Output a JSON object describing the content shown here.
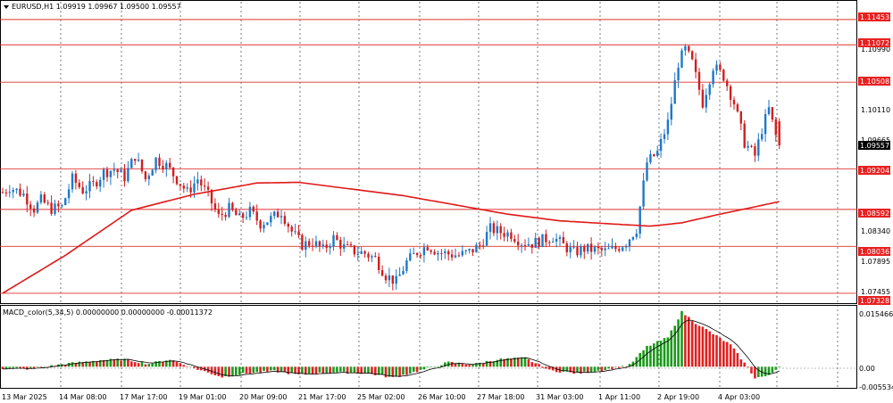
{
  "header": {
    "symbol_line": "EURUSD,H1  1.09919 1.09967 1.09500 1.09557"
  },
  "indicator": {
    "label": "MACD_color(5,34,5) 0.00000000 0.00000000 -0.00011372",
    "scale_labels": [
      "0.0154669",
      "0.00",
      "-0.0055345"
    ]
  },
  "price_axis": {
    "ticks": [
      "1.10990",
      "1.10110",
      "1.09665",
      "1.08340",
      "1.07895",
      "1.07455"
    ],
    "current_price": "1.09557",
    "levels": [
      "1.11453",
      "1.11072",
      "1.10508",
      "1.09204",
      "1.08592",
      "1.08036",
      "1.07328"
    ]
  },
  "time_axis": {
    "labels": [
      "13 Mar 2025",
      "14 Mar 08:00",
      "17 Mar 17:00",
      "19 Mar 01:00",
      "20 Mar 09:00",
      "21 Mar 17:00",
      "25 Mar 02:00",
      "26 Mar 10:00",
      "27 Mar 18:00",
      "31 Mar 03:00",
      "1 Apr 11:00",
      "2 Apr 19:00",
      "4 Apr 03:00"
    ]
  },
  "colors": {
    "bull": "#1f77c8",
    "bear": "#d01f1f",
    "level_line": "#e03030",
    "ma_line": "#e01818",
    "level_tag": "#e82020",
    "current_tag": "#000000",
    "macd_up": "#1a9a1a",
    "macd_down": "#e02020",
    "signal": "#000000",
    "grid": "#404040"
  },
  "chart_data": {
    "type": "candlestick",
    "symbol": "EURUSD",
    "timeframe": "H1",
    "last_ohlc": {
      "open": 1.09919,
      "high": 1.09967,
      "low": 1.095,
      "close": 1.09557
    },
    "ylim": [
      1.0718,
      1.1172
    ],
    "horizontal_levels": [
      1.11453,
      1.11072,
      1.10508,
      1.09204,
      1.08592,
      1.08036,
      1.07328
    ],
    "close_path": [
      [
        0,
        1.0885
      ],
      [
        2,
        1.0893
      ],
      [
        6,
        1.0882
      ],
      [
        9,
        1.086
      ],
      [
        11,
        1.0873
      ],
      [
        14,
        1.086
      ],
      [
        17,
        1.0863
      ],
      [
        20,
        1.0905
      ],
      [
        23,
        1.0888
      ],
      [
        26,
        1.0896
      ],
      [
        29,
        1.0915
      ],
      [
        32,
        1.092
      ],
      [
        35,
        1.0908
      ],
      [
        38,
        1.094
      ],
      [
        41,
        1.0905
      ],
      [
        44,
        1.0935
      ],
      [
        47,
        1.0925
      ],
      [
        50,
        1.0905
      ],
      [
        53,
        1.0885
      ],
      [
        56,
        1.0905
      ],
      [
        59,
        1.088
      ],
      [
        62,
        1.0848
      ],
      [
        65,
        1.086
      ],
      [
        68,
        1.0845
      ],
      [
        71,
        1.0856
      ],
      [
        74,
        1.0838
      ],
      [
        77,
        1.0845
      ],
      [
        80,
        1.0856
      ],
      [
        83,
        1.0826
      ],
      [
        86,
        1.0806
      ],
      [
        89,
        1.081
      ],
      [
        92,
        1.0798
      ],
      [
        95,
        1.0816
      ],
      [
        98,
        1.0802
      ],
      [
        101,
        1.0796
      ],
      [
        104,
        1.0793
      ],
      [
        107,
        1.0785
      ],
      [
        110,
        1.076
      ],
      [
        113,
        1.075
      ],
      [
        116,
        1.078
      ],
      [
        119,
        1.0795
      ],
      [
        122,
        1.0805
      ],
      [
        125,
        1.0795
      ],
      [
        128,
        1.0792
      ],
      [
        131,
        1.079
      ],
      [
        134,
        1.0795
      ],
      [
        137,
        1.0805
      ],
      [
        140,
        1.083
      ],
      [
        143,
        1.0825
      ],
      [
        146,
        1.0822
      ],
      [
        149,
        1.081
      ],
      [
        152,
        1.0808
      ],
      [
        155,
        1.0813
      ],
      [
        158,
        1.0818
      ],
      [
        161,
        1.0805
      ],
      [
        164,
        1.0794
      ],
      [
        167,
        1.08
      ],
      [
        170,
        1.0798
      ],
      [
        173,
        1.0796
      ],
      [
        176,
        1.08
      ],
      [
        179,
        1.081
      ],
      [
        182,
        1.083
      ],
      [
        185,
        1.093
      ],
      [
        188,
        1.0945
      ],
      [
        191,
        1.099
      ],
      [
        194,
        1.108
      ],
      [
        196,
        1.11
      ],
      [
        198,
        1.108
      ],
      [
        201,
        1.102
      ],
      [
        204,
        1.1075
      ],
      [
        207,
        1.106
      ],
      [
        210,
        1.102
      ],
      [
        213,
        1.096
      ],
      [
        216,
        1.094
      ],
      [
        218,
        1.098
      ],
      [
        220,
        1.101
      ],
      [
        222,
        1.097
      ],
      [
        223,
        1.09557
      ]
    ],
    "moving_average": [
      [
        0,
        1.0733
      ],
      [
        18,
        1.079
      ],
      [
        37,
        1.0858
      ],
      [
        55,
        1.0882
      ],
      [
        73,
        1.0899
      ],
      [
        85,
        1.09
      ],
      [
        100,
        1.089
      ],
      [
        115,
        1.088
      ],
      [
        130,
        1.0866
      ],
      [
        145,
        1.0852
      ],
      [
        160,
        1.0842
      ],
      [
        176,
        1.0837
      ],
      [
        186,
        1.0834
      ],
      [
        195,
        1.0839
      ],
      [
        205,
        1.0851
      ],
      [
        215,
        1.0862
      ],
      [
        223,
        1.0871
      ]
    ],
    "macd": {
      "hist_path": [
        [
          0,
          -0.0004
        ],
        [
          8,
          -0.0006
        ],
        [
          18,
          0.0008
        ],
        [
          28,
          0.0018
        ],
        [
          35,
          0.002
        ],
        [
          42,
          0.0008
        ],
        [
          48,
          0.002
        ],
        [
          55,
          -0.0004
        ],
        [
          63,
          -0.0028
        ],
        [
          70,
          -0.0018
        ],
        [
          78,
          -0.0012
        ],
        [
          85,
          -0.0022
        ],
        [
          95,
          -0.0015
        ],
        [
          105,
          -0.0018
        ],
        [
          112,
          -0.003
        ],
        [
          120,
          -0.001
        ],
        [
          128,
          0.0012
        ],
        [
          135,
          0.0006
        ],
        [
          142,
          0.002
        ],
        [
          150,
          0.0024
        ],
        [
          157,
          -0.001
        ],
        [
          165,
          -0.0018
        ],
        [
          173,
          -0.0008
        ],
        [
          180,
          0.0005
        ],
        [
          185,
          0.0055
        ],
        [
          191,
          0.008
        ],
        [
          195,
          0.015
        ],
        [
          199,
          0.012
        ],
        [
          204,
          0.009
        ],
        [
          209,
          0.006
        ],
        [
          213,
          0.001
        ],
        [
          216,
          -0.003
        ],
        [
          220,
          -0.0025
        ],
        [
          223,
          0.0001
        ]
      ],
      "ylim": [
        -0.0055345,
        0.0154669
      ]
    }
  }
}
